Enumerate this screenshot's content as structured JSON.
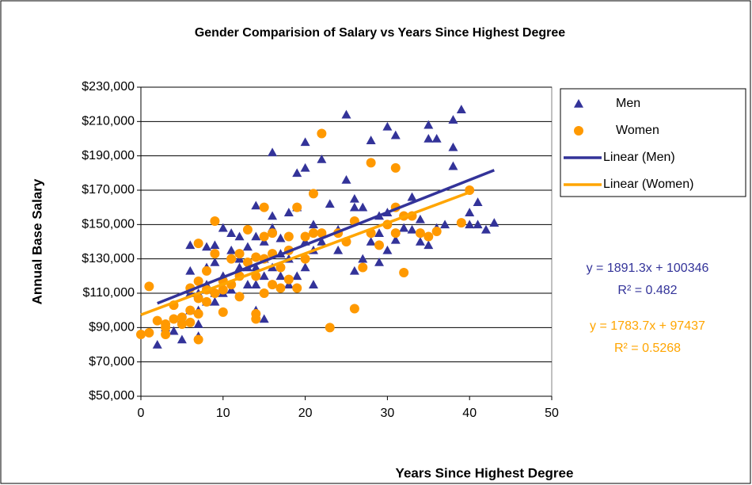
{
  "chart_data": {
    "type": "scatter",
    "title": "Gender Comparision of Salary vs Years Since Highest Degree",
    "x_label": "Years Since Highest Degree",
    "y_label": "Annual Base Salary",
    "xlim": [
      0,
      50
    ],
    "xticks": [
      0,
      10,
      20,
      30,
      40,
      50
    ],
    "ylim": [
      50000,
      230000
    ],
    "yticks": [
      {
        "value": 50000,
        "label": "$50,000"
      },
      {
        "value": 70000,
        "label": "$70,000"
      },
      {
        "value": 90000,
        "label": "$90,000"
      },
      {
        "value": 110000,
        "label": "$110,000"
      },
      {
        "value": 130000,
        "label": "$130,000"
      },
      {
        "value": 150000,
        "label": "$150,000"
      },
      {
        "value": 170000,
        "label": "$170,000"
      },
      {
        "value": 190000,
        "label": "$190,000"
      },
      {
        "value": 210000,
        "label": "$210,000"
      },
      {
        "value": 230000,
        "label": "$230,000"
      }
    ],
    "grid": true,
    "legend": "right",
    "series": [
      {
        "name": "Men",
        "color": "#333399",
        "marker": "triangle",
        "x": [
          2,
          3,
          4,
          5,
          5,
          6,
          6,
          6,
          6,
          7,
          7,
          7,
          7,
          8,
          8,
          8,
          8,
          9,
          9,
          9,
          9,
          10,
          10,
          10,
          11,
          11,
          11,
          12,
          12,
          12,
          13,
          13,
          13,
          14,
          14,
          14,
          14,
          14,
          15,
          15,
          15,
          15,
          16,
          16,
          16,
          16,
          17,
          17,
          17,
          18,
          18,
          18,
          19,
          19,
          19,
          20,
          20,
          20,
          20,
          21,
          21,
          21,
          22,
          22,
          23,
          24,
          24,
          25,
          25,
          26,
          26,
          26,
          27,
          27,
          28,
          28,
          29,
          29,
          29,
          30,
          30,
          30,
          31,
          31,
          32,
          33,
          33,
          34,
          34,
          35,
          35,
          35,
          36,
          36,
          37,
          38,
          38,
          38,
          39,
          40,
          40,
          41,
          41,
          42,
          43
        ],
        "values": [
          80000,
          90000,
          88000,
          83000,
          95000,
          100000,
          110000,
          123000,
          138000,
          85000,
          92000,
          100000,
          110000,
          105000,
          115000,
          125000,
          137000,
          105000,
          110000,
          128000,
          138000,
          110000,
          120000,
          148000,
          112000,
          135000,
          145000,
          125000,
          130000,
          143000,
          115000,
          125000,
          137000,
          100000,
          115000,
          125000,
          143000,
          161000,
          95000,
          120000,
          130000,
          140000,
          125000,
          148000,
          155000,
          192000,
          120000,
          133000,
          142000,
          115000,
          130000,
          157000,
          120000,
          160000,
          180000,
          125000,
          140000,
          183000,
          198000,
          115000,
          135000,
          150000,
          140000,
          188000,
          162000,
          135000,
          147000,
          176000,
          214000,
          123000,
          160000,
          165000,
          130000,
          160000,
          140000,
          199000,
          128000,
          145000,
          155000,
          135000,
          157000,
          207000,
          141000,
          202000,
          148000,
          147000,
          166000,
          140000,
          153000,
          138000,
          200000,
          208000,
          148000,
          200000,
          150000,
          184000,
          195000,
          211000,
          217000,
          150000,
          157000,
          150000,
          163000,
          147000,
          151000
        ]
      },
      {
        "name": "Women",
        "color": "#FF9900",
        "marker": "circle",
        "x": [
          0,
          1,
          1,
          2,
          3,
          3,
          3,
          4,
          4,
          5,
          5,
          6,
          6,
          6,
          7,
          7,
          7,
          7,
          7,
          8,
          8,
          8,
          9,
          9,
          9,
          10,
          10,
          10,
          11,
          11,
          12,
          12,
          12,
          13,
          13,
          14,
          14,
          14,
          14,
          15,
          15,
          15,
          15,
          16,
          16,
          16,
          17,
          17,
          18,
          18,
          18,
          19,
          19,
          20,
          20,
          21,
          21,
          22,
          22,
          23,
          24,
          25,
          26,
          26,
          27,
          28,
          28,
          29,
          30,
          31,
          31,
          31,
          32,
          32,
          33,
          34,
          35,
          36,
          39,
          40
        ],
        "values": [
          86000,
          87000,
          114000,
          94000,
          86000,
          90000,
          92000,
          95000,
          103000,
          92000,
          96000,
          93000,
          100000,
          113000,
          83000,
          98000,
          107000,
          117000,
          139000,
          105000,
          112000,
          123000,
          110000,
          133000,
          152000,
          99000,
          112000,
          117000,
          115000,
          130000,
          108000,
          120000,
          133000,
          128000,
          147000,
          95000,
          98000,
          120000,
          131000,
          110000,
          130000,
          143000,
          160000,
          115000,
          133000,
          145000,
          125000,
          113000,
          118000,
          135000,
          143000,
          113000,
          160000,
          130000,
          143000,
          145000,
          168000,
          145000,
          203000,
          90000,
          145000,
          140000,
          101000,
          152000,
          125000,
          145000,
          186000,
          138000,
          150000,
          145000,
          160000,
          183000,
          122000,
          155000,
          155000,
          145000,
          143000,
          146000,
          151000,
          170000
        ]
      },
      {
        "name": "Linear (Men)",
        "color": "#333399",
        "marker": "line",
        "x": [
          2,
          43
        ],
        "values": [
          104129,
          181672
        ]
      },
      {
        "name": "Linear (Women)",
        "color": "#FFA500",
        "marker": "line",
        "x": [
          0,
          40
        ],
        "values": [
          97437,
          168785
        ]
      }
    ],
    "annotations": [
      {
        "text": "y = 1891.3x + 100346",
        "color": "#333399"
      },
      {
        "text": "R² = 0.482",
        "color": "#333399"
      },
      {
        "text": "y = 1783.7x + 97437",
        "color": "#FFA500"
      },
      {
        "text": "R² = 0.5268",
        "color": "#FFA500"
      }
    ]
  }
}
